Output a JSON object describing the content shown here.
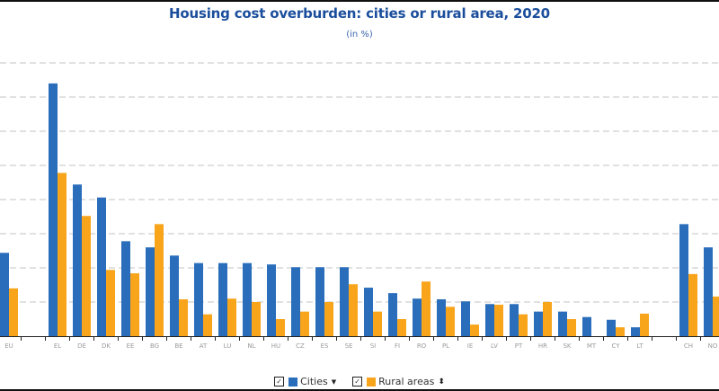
{
  "chart_data": {
    "type": "bar",
    "title": "Housing cost overburden: cities or rural area, 2020",
    "subtitle": "(in %)",
    "xlabel": "",
    "ylabel": "",
    "ylim": [
      0,
      40
    ],
    "grid": true,
    "gridlines": [
      5,
      10,
      15,
      20,
      25,
      30,
      35,
      40
    ],
    "legend_position": "bottom-center",
    "categories": [
      "EU",
      "",
      "EL",
      "DE",
      "DK",
      "EE",
      "BG",
      "BE",
      "AT",
      "LU",
      "NL",
      "HU",
      "CZ",
      "ES",
      "SE",
      "SI",
      "FI",
      "RO",
      "PL",
      "IE",
      "LV",
      "PT",
      "HR",
      "SK",
      "MT",
      "CY",
      "LT",
      "",
      "CH",
      "NO"
    ],
    "series": [
      {
        "name": "Cities",
        "color": "#2a6ebb",
        "values": [
          12.2,
          null,
          37.0,
          22.2,
          20.3,
          13.9,
          13.0,
          11.8,
          10.7,
          10.7,
          10.7,
          10.5,
          10.1,
          10.1,
          10.1,
          7.1,
          6.3,
          5.5,
          5.4,
          5.1,
          4.7,
          4.7,
          3.6,
          3.6,
          2.8,
          2.4,
          1.3,
          null,
          16.4,
          13.0
        ]
      },
      {
        "name": "Rural areas",
        "color": "#f8a51c",
        "values": [
          7.0,
          null,
          23.9,
          17.6,
          9.7,
          9.2,
          16.4,
          5.4,
          3.2,
          5.5,
          5.0,
          2.5,
          3.6,
          5.0,
          7.6,
          3.6,
          2.5,
          8.0,
          4.3,
          1.7,
          4.6,
          3.2,
          5.0,
          2.5,
          null,
          1.3,
          3.3,
          null,
          9.1,
          5.8
        ]
      }
    ]
  },
  "legend": {
    "items": [
      {
        "label": "Cities",
        "checked": true,
        "checkbox_glyph": "✓",
        "sort_glyph": "▼"
      },
      {
        "label": "Rural areas",
        "checked": true,
        "checkbox_glyph": "✓",
        "sort_glyph": "⬍"
      }
    ]
  }
}
